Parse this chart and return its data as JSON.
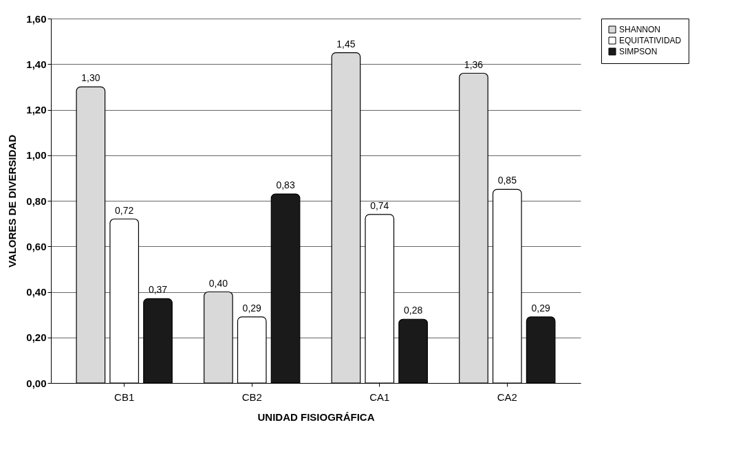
{
  "chart_data": {
    "type": "bar",
    "xlabel": "UNIDAD FISIOGRÁFICA",
    "ylabel": "VALORES DE DIVERSIDAD",
    "categories": [
      "CB1",
      "CB2",
      "CA1",
      "CA2"
    ],
    "series": [
      {
        "name": "SHANNON",
        "color": "#d9d9d9",
        "values": [
          1.3,
          0.4,
          1.45,
          1.36
        ],
        "value_labels": [
          "1,30",
          "0,40",
          "1,45",
          "1,36"
        ]
      },
      {
        "name": "EQUITATIVIDAD",
        "color": "#ffffff",
        "values": [
          0.72,
          0.29,
          0.74,
          0.85
        ],
        "value_labels": [
          "0,72",
          "0,29",
          "0,74",
          "0,85"
        ]
      },
      {
        "name": "SIMPSON",
        "color": "#1a1a1a",
        "values": [
          0.37,
          0.83,
          0.28,
          0.29
        ],
        "value_labels": [
          "0,37",
          "0,83",
          "0,28",
          "0,29"
        ]
      }
    ],
    "ylim": [
      0,
      1.6
    ],
    "yticks": [
      {
        "value": 0,
        "label": "0,00"
      },
      {
        "value": 0.2,
        "label": "0,20"
      },
      {
        "value": 0.4,
        "label": "0,40"
      },
      {
        "value": 0.6,
        "label": "0,60"
      },
      {
        "value": 0.8,
        "label": "0,80"
      },
      {
        "value": 1.0,
        "label": "1,00"
      },
      {
        "value": 1.2,
        "label": "1,20"
      },
      {
        "value": 1.4,
        "label": "1,40"
      },
      {
        "value": 1.6,
        "label": "1,60"
      }
    ],
    "grid": "y",
    "legend": "right"
  }
}
